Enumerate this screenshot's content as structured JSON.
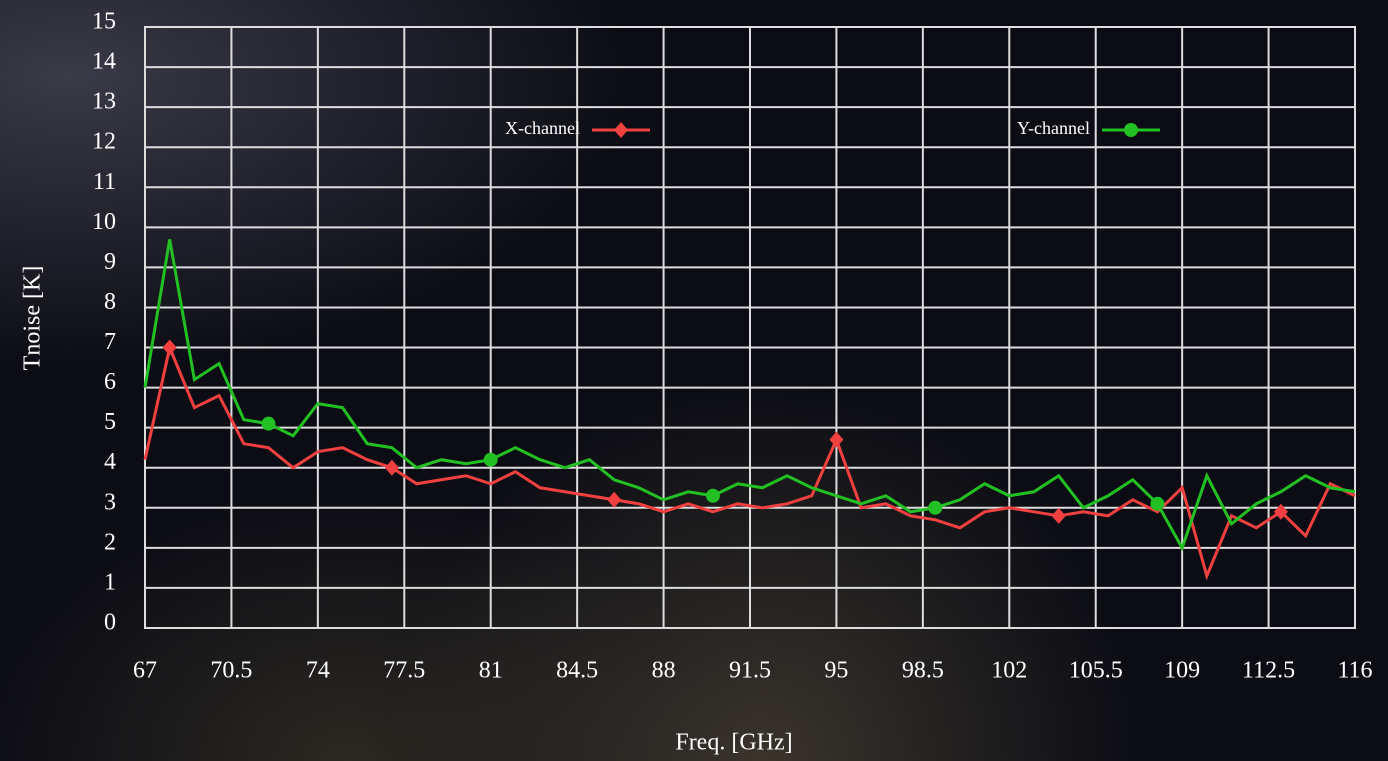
{
  "chart_data": {
    "type": "line",
    "x_label": "Freq. [GHz]",
    "y_label": "Tnoise [K]",
    "x": [
      67,
      68,
      69,
      70,
      71,
      72,
      73,
      74,
      75,
      76,
      77,
      78,
      79,
      80,
      81,
      82,
      83,
      84,
      85,
      86,
      87,
      88,
      89,
      90,
      91,
      92,
      93,
      94,
      95,
      96,
      97,
      98,
      99,
      100,
      101,
      102,
      103,
      104,
      105,
      106,
      107,
      108,
      109,
      110,
      111,
      112,
      113,
      114,
      115,
      116
    ],
    "series": [
      {
        "name": "X-channel",
        "color": "#f04040",
        "marker": "diamond",
        "values": [
          4.2,
          7.0,
          5.5,
          5.8,
          4.6,
          4.5,
          4.0,
          4.4,
          4.5,
          4.2,
          4.0,
          3.6,
          3.7,
          3.8,
          3.6,
          3.9,
          3.5,
          3.4,
          3.3,
          3.2,
          3.1,
          2.9,
          3.1,
          2.9,
          3.1,
          3.0,
          3.1,
          3.3,
          4.7,
          3.0,
          3.1,
          2.8,
          2.7,
          2.5,
          2.9,
          3.0,
          2.9,
          2.8,
          2.9,
          2.8,
          3.2,
          2.9,
          3.5,
          1.3,
          2.8,
          2.5,
          2.9,
          2.3,
          3.6,
          3.3
        ]
      },
      {
        "name": "Y-channel",
        "color": "#22c022",
        "marker": "circle",
        "values": [
          6.0,
          9.7,
          6.2,
          6.6,
          5.2,
          5.1,
          4.8,
          5.6,
          5.5,
          4.6,
          4.5,
          4.0,
          4.2,
          4.1,
          4.2,
          4.5,
          4.2,
          4.0,
          4.2,
          3.7,
          3.5,
          3.2,
          3.4,
          3.3,
          3.6,
          3.5,
          3.8,
          3.5,
          3.3,
          3.1,
          3.3,
          2.9,
          3.0,
          3.2,
          3.6,
          3.3,
          3.4,
          3.8,
          3.0,
          3.3,
          3.7,
          3.1,
          2.0,
          3.8,
          2.6,
          3.1,
          3.4,
          3.8,
          3.5,
          3.4
        ]
      }
    ],
    "xlim": [
      67,
      116
    ],
    "xticks": [
      67,
      70.5,
      74,
      77.5,
      81,
      84.5,
      88,
      91.5,
      95,
      98.5,
      102,
      105.5,
      109,
      112.5,
      116
    ],
    "ylim": [
      0,
      15
    ],
    "yticks": [
      0,
      1,
      2,
      3,
      4,
      5,
      6,
      7,
      8,
      9,
      10,
      11,
      12,
      13,
      14,
      15
    ],
    "grid": true,
    "legend": "top"
  }
}
